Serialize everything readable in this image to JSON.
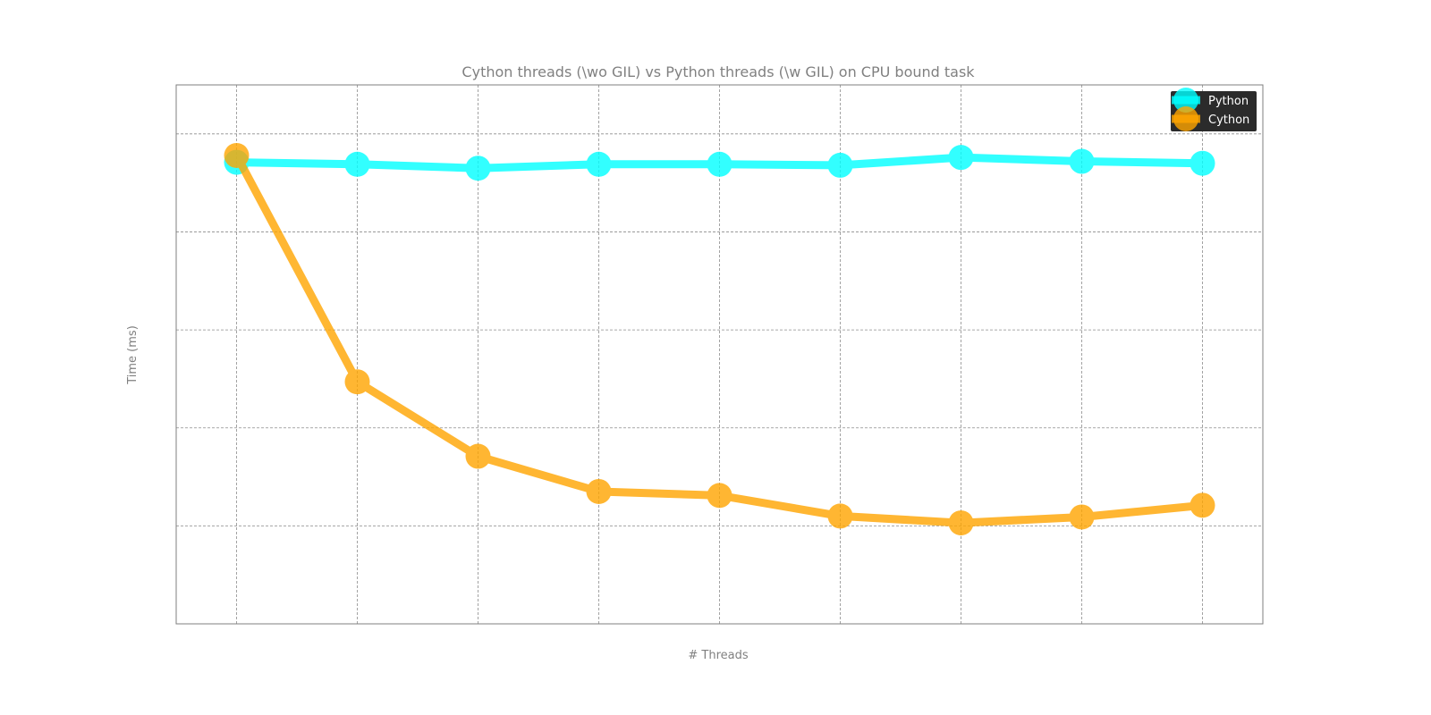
{
  "chart_data": {
    "type": "line",
    "title": "Cython threads (\\wo GIL) vs Python threads (\\w GIL) on CPU bound task",
    "xlabel": "# Threads",
    "ylabel": "Time (ms)",
    "x": [
      1,
      2,
      3,
      4,
      5,
      6,
      7,
      8,
      9
    ],
    "xlim": [
      0.5,
      9.5
    ],
    "ylim": [
      0,
      5.5
    ],
    "y_gridlines": [
      1,
      2,
      3,
      4,
      5
    ],
    "grid": true,
    "tick_labels_visible": false,
    "legend_position": "top-right",
    "series": [
      {
        "name": "Python",
        "color": "#00ffff",
        "values": [
          4.71,
          4.69,
          4.65,
          4.69,
          4.69,
          4.68,
          4.76,
          4.72,
          4.7
        ]
      },
      {
        "name": "Cython",
        "color": "#ffa500",
        "values": [
          4.78,
          2.47,
          1.71,
          1.35,
          1.31,
          1.1,
          1.03,
          1.09,
          1.21
        ]
      }
    ]
  }
}
